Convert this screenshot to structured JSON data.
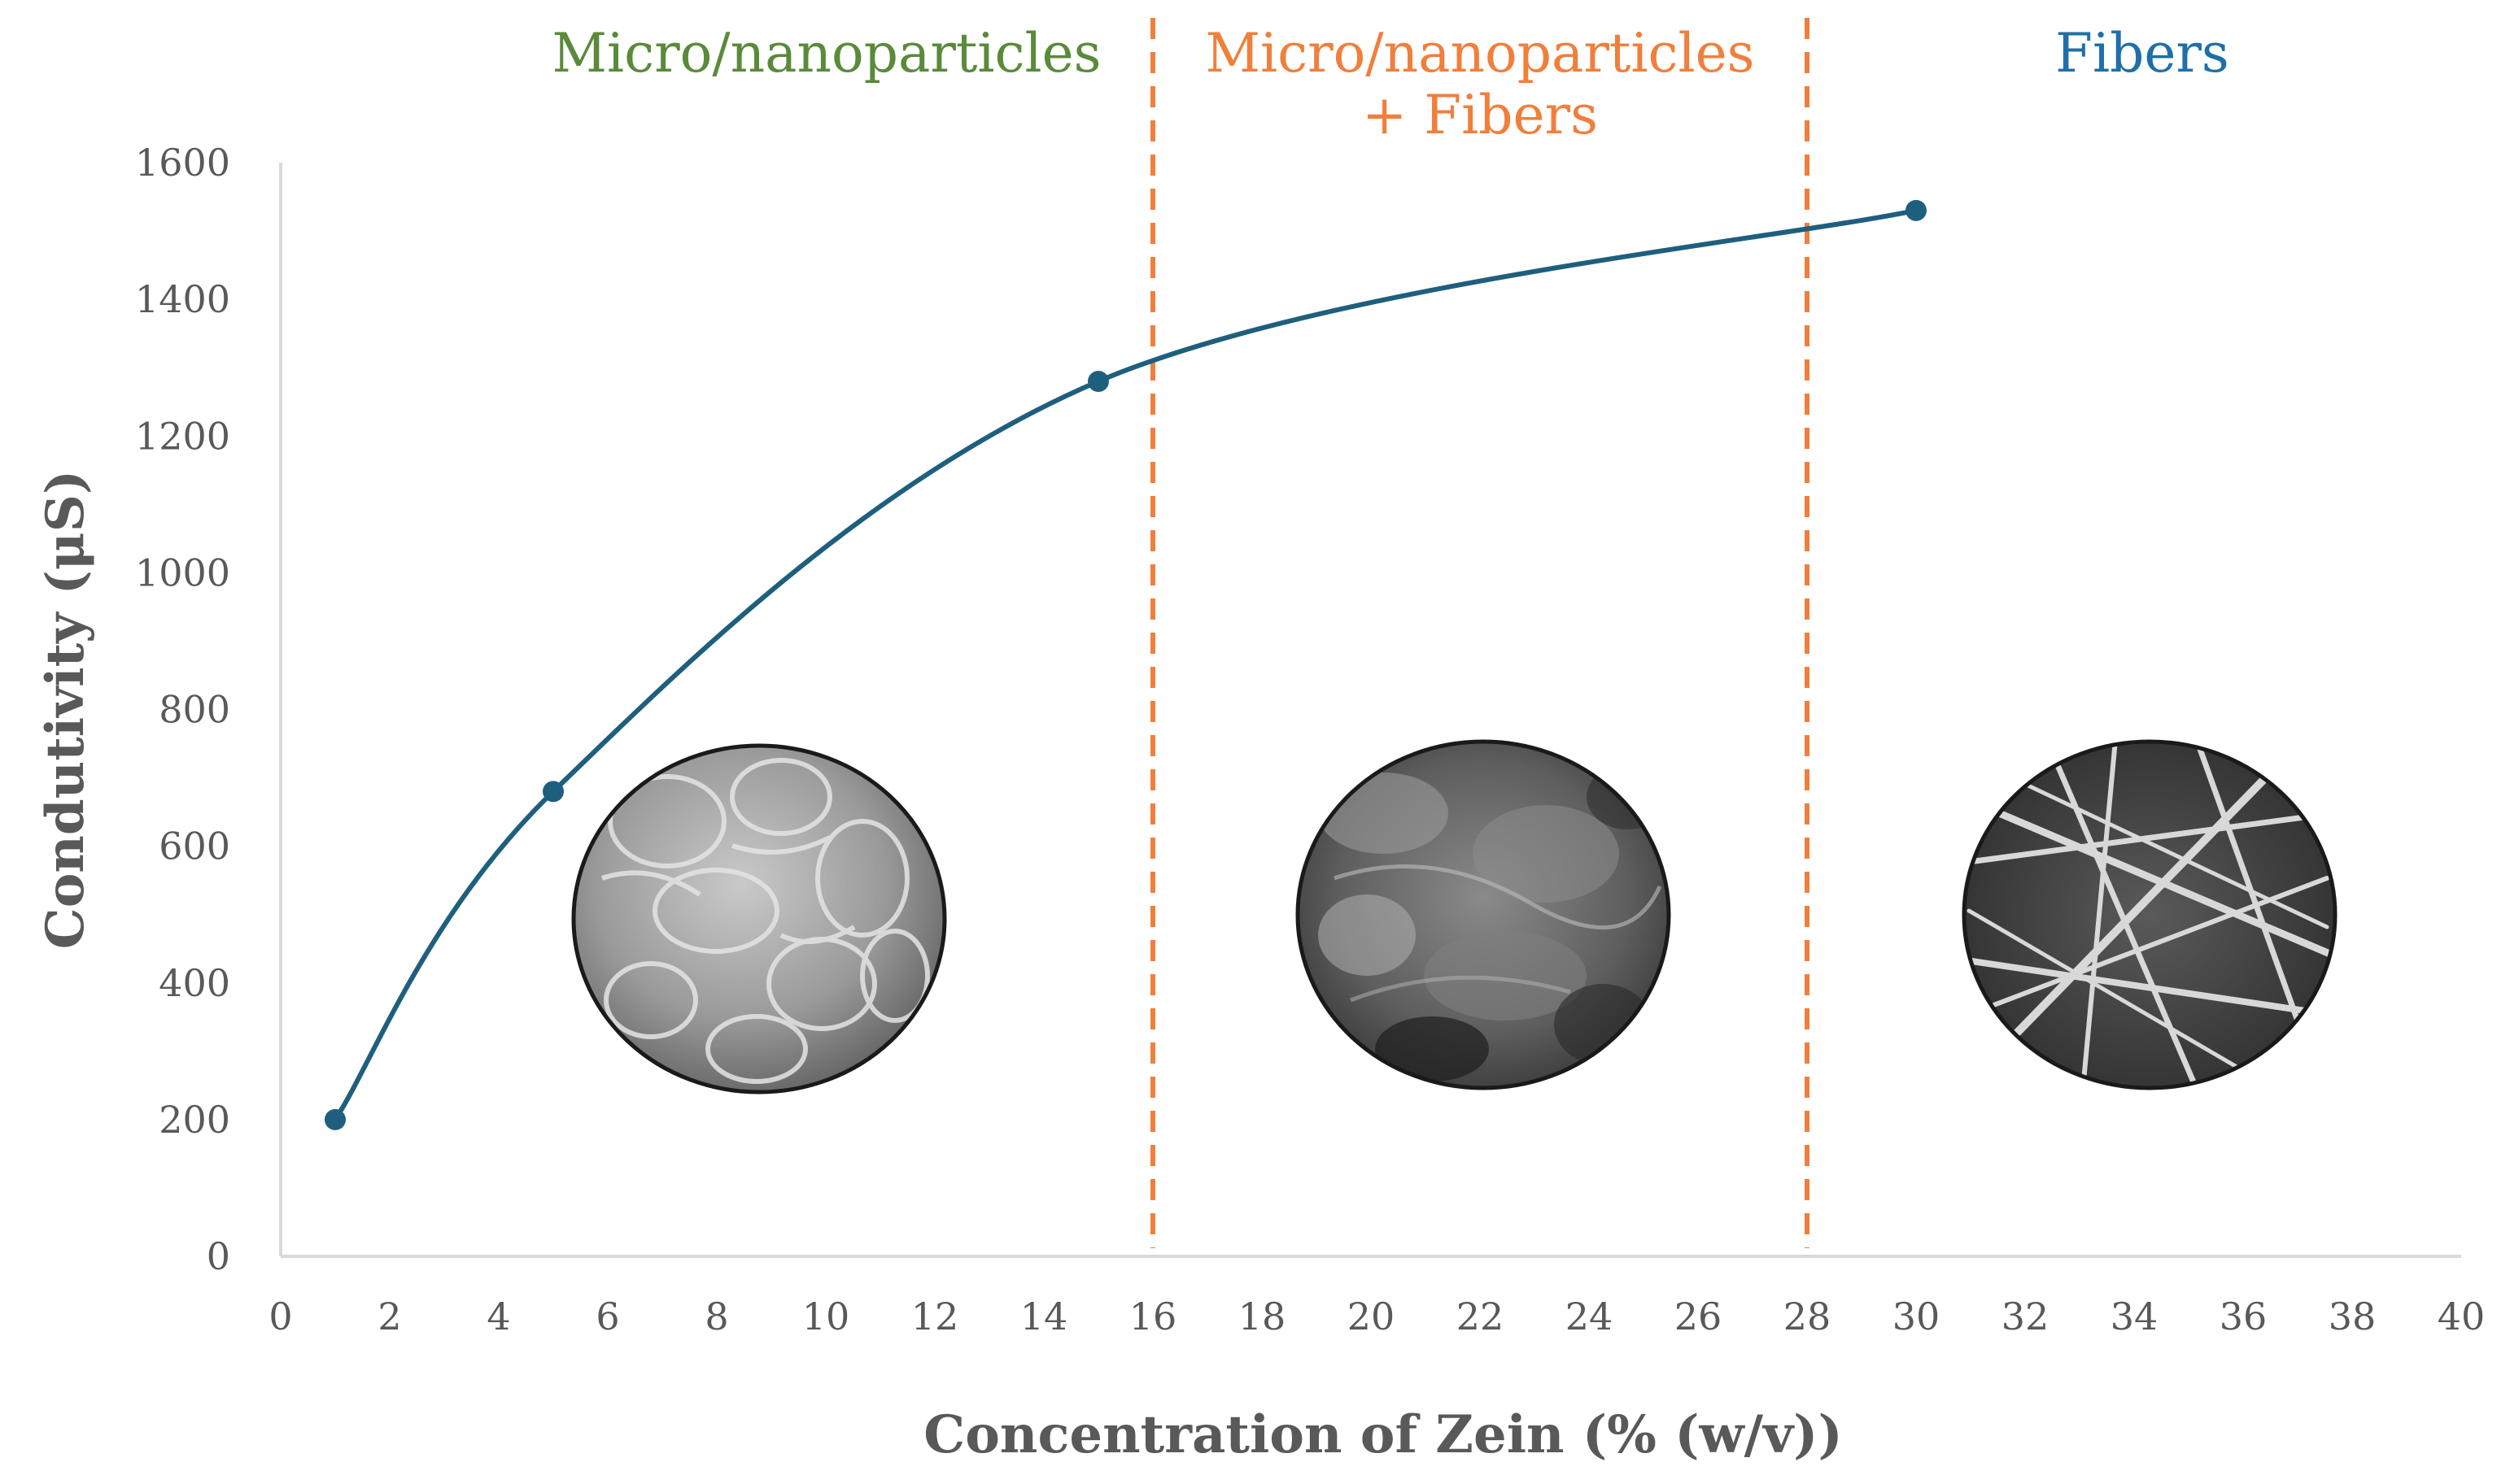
{
  "chart_data": {
    "type": "line",
    "title": "",
    "xlabel": "Concentration of Zein (% (w/v))",
    "ylabel": "Condutivity (μS)",
    "xlim": [
      0,
      40
    ],
    "ylim": [
      0,
      1600
    ],
    "x_ticks": [
      0,
      2,
      4,
      6,
      8,
      10,
      12,
      14,
      16,
      18,
      20,
      22,
      24,
      26,
      28,
      30,
      32,
      34,
      36,
      38,
      40
    ],
    "y_ticks": [
      0,
      200,
      400,
      600,
      800,
      1000,
      1200,
      1400,
      1600
    ],
    "grid": false,
    "smooth": true,
    "series": [
      {
        "x": [
          1,
          5,
          15,
          30
        ],
        "y": [
          200,
          680,
          1280,
          1530
        ],
        "color": "#1f5f7e"
      }
    ],
    "boundaries": [
      {
        "x": 16,
        "color": "#f07f3c",
        "style": "dashed"
      },
      {
        "x": 28,
        "color": "#f07f3c",
        "style": "dashed"
      }
    ],
    "regions": [
      {
        "lines": [
          "Micro/nanoparticles"
        ],
        "color": "#5a8a3a"
      },
      {
        "lines": [
          "Micro/nanoparticles",
          "+ Fibers"
        ],
        "color": "#f07f3c"
      },
      {
        "lines": [
          "Fibers"
        ],
        "color": "#1f6fa8"
      }
    ],
    "inset_images": [
      {
        "icon": "sem-micrograph-particles-icon"
      },
      {
        "icon": "sem-micrograph-mixed-icon"
      },
      {
        "icon": "sem-micrograph-fibers-icon"
      }
    ],
    "colors": {
      "axis": "#d9d9d9",
      "text": "#595959"
    }
  }
}
